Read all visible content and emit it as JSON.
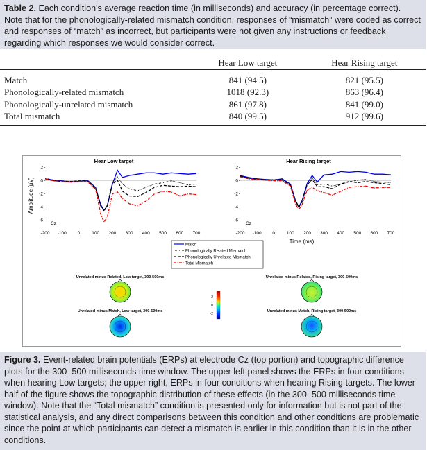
{
  "table": {
    "label": "Table 2.",
    "caption": "Each condition's average reaction time (in milliseconds) and accuracy (in percentage correct). Note that for the phonologically-related mismatch condition, responses of “mismatch” were coded as correct and responses of “match” as incorrect, but participants were not given any instructions or feedback regarding which responses we would consider correct.",
    "headers": [
      "",
      "Hear Low target",
      "Hear Rising target"
    ],
    "rows": [
      [
        "Match",
        "841 (94.5)",
        "821 (95.5)"
      ],
      [
        "Phonologically-related mismatch",
        "1018 (92.3)",
        "863 (96.4)"
      ],
      [
        "Phonologically-unrelated mismatch",
        "861 (97.8)",
        "841 (99.0)"
      ],
      [
        "Total mismatch",
        "840 (99.5)",
        "912 (99.6)"
      ]
    ]
  },
  "figure": {
    "label": "Figure 3.",
    "caption": "Event-related brain potentials (ERPs) at electrode Cz (top portion) and topographic difference plots for the 300–500 milliseconds time window. The upper left panel shows the ERPs in four conditions when hearing Low targets; the upper right, ERPs in four conditions when hearing Rising targets. The lower half of the figure shows the topographic distribution of these effects (in the 300–500 milliseconds time window). Note that the “Total mismatch” condition is presented only for information but is not part of the statistical analysis, and any direct comparisons between this condition and other conditions are problematic since the point at which participants can detect a mismatch is earlier in this condition than it is in the other conditions.",
    "ylabel": "Amplitude (µV)",
    "xlabel": "Time (ms)",
    "electrode": "Cz",
    "colorbar_ticks": [
      "2",
      "0",
      "-2"
    ],
    "topo_titles": [
      "Unrelated minus Related, Low target, 300-500ms",
      "Unrelated minus Related, Rising target, 300-500ms",
      "Unrelated minus Match, Low target, 300-500ms",
      "Unrelated minus Match, Rising target, 300-500ms"
    ],
    "colors": {
      "match": "#0000ee",
      "related": "#000000",
      "unrelated": "#000000",
      "total": "#ee0000"
    }
  },
  "chart_data": [
    {
      "type": "line",
      "title": "Hear Low target",
      "xlabel": "",
      "ylabel": "Amplitude (µV)",
      "xlim": [
        -200,
        700
      ],
      "ylim": [
        -7,
        2.5
      ],
      "x_ticks": [
        -200,
        -100,
        0,
        100,
        200,
        300,
        400,
        500,
        600,
        700
      ],
      "y_ticks": [
        2,
        0,
        -2,
        -4,
        -6
      ],
      "x": [
        -200,
        -150,
        -100,
        -50,
        0,
        50,
        100,
        130,
        150,
        170,
        200,
        230,
        260,
        300,
        350,
        400,
        450,
        500,
        550,
        600,
        650,
        700
      ],
      "series": [
        {
          "name": "Match",
          "values": [
            0.3,
            0.1,
            0.0,
            -0.2,
            -0.1,
            0.1,
            -1.0,
            -3.6,
            -4.5,
            -3.8,
            -0.5,
            1.6,
            0.5,
            0.8,
            1.0,
            1.2,
            1.2,
            1.0,
            1.2,
            1.1,
            1.0,
            1.1
          ]
        },
        {
          "name": "Phonologically Related Mismatch",
          "values": [
            0.4,
            0.1,
            0.0,
            -0.1,
            -0.1,
            0.0,
            -1.2,
            -3.8,
            -4.6,
            -3.6,
            -0.3,
            0.6,
            -0.5,
            -1.2,
            -1.5,
            -1.0,
            -0.5,
            -0.3,
            0.0,
            -0.3,
            -0.6,
            -0.5
          ]
        },
        {
          "name": "Phonologically Unrelated Mismatch",
          "values": [
            0.3,
            0.0,
            -0.1,
            -0.1,
            0.0,
            0.0,
            -1.1,
            -3.8,
            -4.6,
            -3.8,
            -0.5,
            0.1,
            -1.6,
            -2.3,
            -2.4,
            -1.8,
            -1.0,
            -0.7,
            -0.8,
            -0.9,
            -0.8,
            -0.9
          ]
        },
        {
          "name": "Total Mismatch",
          "values": [
            0.3,
            0.0,
            -0.1,
            -0.2,
            -0.1,
            -0.1,
            -1.3,
            -5.0,
            -6.3,
            -5.5,
            -2.0,
            -1.7,
            -2.7,
            -3.5,
            -3.8,
            -3.1,
            -2.0,
            -1.6,
            -1.7,
            -2.3,
            -2.0,
            -2.1
          ]
        }
      ]
    },
    {
      "type": "line",
      "title": "Hear Rising target",
      "xlabel": "Time (ms)",
      "ylabel": "",
      "xlim": [
        -200,
        700
      ],
      "ylim": [
        -7,
        2.5
      ],
      "x_ticks": [
        -200,
        -100,
        0,
        100,
        200,
        300,
        400,
        500,
        600,
        700
      ],
      "y_ticks": [
        2,
        0,
        -2,
        -4,
        -6
      ],
      "x": [
        -200,
        -150,
        -100,
        -50,
        0,
        50,
        100,
        130,
        150,
        170,
        200,
        230,
        260,
        300,
        350,
        400,
        450,
        500,
        550,
        600,
        650,
        700
      ],
      "series": [
        {
          "name": "Match",
          "values": [
            0.8,
            0.5,
            0.3,
            0.2,
            0.1,
            0.3,
            -0.5,
            -3.0,
            -4.0,
            -3.0,
            -0.4,
            0.8,
            -0.2,
            0.9,
            1.0,
            1.4,
            1.3,
            1.4,
            1.3,
            1.0,
            1.0,
            0.9
          ]
        },
        {
          "name": "Phonologically Related Mismatch",
          "values": [
            0.7,
            0.4,
            0.3,
            0.2,
            0.2,
            0.2,
            -0.6,
            -3.1,
            -4.1,
            -3.2,
            -0.5,
            0.4,
            -0.6,
            -0.5,
            -0.8,
            -0.5,
            -0.2,
            0.1,
            0.2,
            -0.1,
            -0.2,
            -0.3
          ]
        },
        {
          "name": "Phonologically Unrelated Mismatch",
          "values": [
            0.7,
            0.4,
            0.2,
            0.1,
            0.1,
            0.1,
            -0.7,
            -3.0,
            -4.0,
            -3.1,
            -0.6,
            0.2,
            -0.9,
            -0.9,
            -1.2,
            -0.5,
            -0.1,
            -0.3,
            -0.1,
            -0.3,
            -0.4,
            -0.6
          ]
        },
        {
          "name": "Total Mismatch",
          "values": [
            0.6,
            0.3,
            0.2,
            0.1,
            0.0,
            0.0,
            -0.8,
            -3.5,
            -4.4,
            -3.6,
            -1.4,
            -1.0,
            -1.5,
            -1.8,
            -2.2,
            -1.6,
            -1.0,
            -0.9,
            -0.8,
            -1.1,
            -1.0,
            -1.0
          ]
        }
      ]
    }
  ]
}
